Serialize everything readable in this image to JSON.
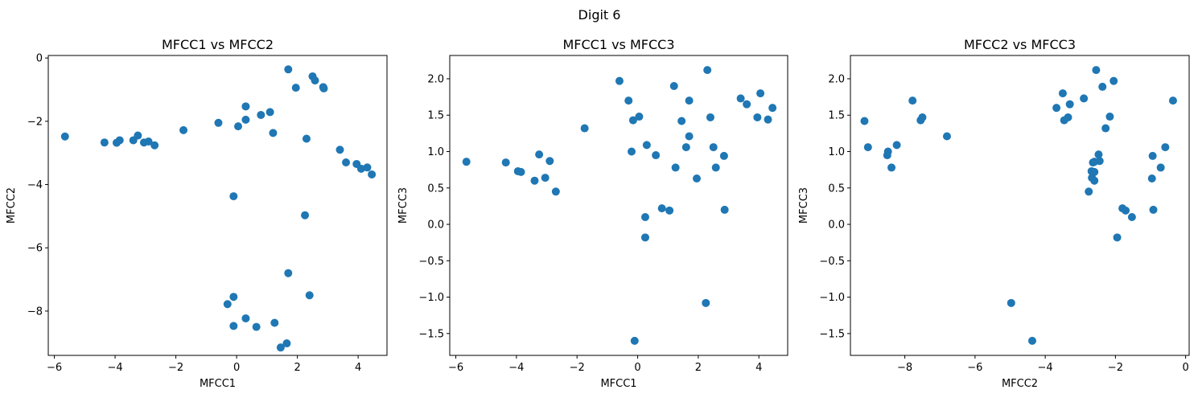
{
  "figure": {
    "suptitle": "Digit 6"
  },
  "colors": {
    "marker": "#1f77b4"
  },
  "chart_data": [
    {
      "type": "scatter",
      "title": "MFCC1 vs MFCC2",
      "xlabel": "MFCC1",
      "ylabel": "MFCC2",
      "xlim": [
        -6.2,
        4.95
      ],
      "ylim": [
        -9.4,
        0.08
      ],
      "xticks": [
        -6,
        -4,
        -2,
        0,
        2,
        4
      ],
      "xtick_labels": [
        "−6",
        "−4",
        "−2",
        "0",
        "2",
        "4"
      ],
      "yticks": [
        -8,
        -6,
        -4,
        -2,
        0
      ],
      "ytick_labels": [
        "−8",
        "−6",
        "−4",
        "−2",
        "0"
      ],
      "points": [
        [
          -5.65,
          -2.48
        ],
        [
          -4.35,
          -2.67
        ],
        [
          -3.95,
          -2.68
        ],
        [
          -3.85,
          -2.6
        ],
        [
          -3.4,
          -2.6
        ],
        [
          -3.25,
          -2.45
        ],
        [
          -3.05,
          -2.67
        ],
        [
          -2.9,
          -2.64
        ],
        [
          -2.7,
          -2.76
        ],
        [
          -1.75,
          -2.28
        ],
        [
          -0.6,
          -2.05
        ],
        [
          0.05,
          -2.16
        ],
        [
          0.3,
          -1.95
        ],
        [
          0.3,
          -1.53
        ],
        [
          0.8,
          -1.8
        ],
        [
          1.1,
          -1.71
        ],
        [
          1.2,
          -2.37
        ],
        [
          1.7,
          -0.36
        ],
        [
          1.95,
          -0.94
        ],
        [
          2.3,
          -2.55
        ],
        [
          2.5,
          -0.58
        ],
        [
          2.58,
          -0.71
        ],
        [
          2.85,
          -0.92
        ],
        [
          2.87,
          -0.96
        ],
        [
          3.4,
          -2.9
        ],
        [
          3.6,
          -3.3
        ],
        [
          3.95,
          -3.35
        ],
        [
          4.1,
          -3.5
        ],
        [
          4.3,
          -3.46
        ],
        [
          4.45,
          -3.68
        ],
        [
          -0.1,
          -4.37
        ],
        [
          2.25,
          -4.97
        ],
        [
          1.7,
          -6.8
        ],
        [
          2.4,
          -7.5
        ],
        [
          -0.3,
          -7.78
        ],
        [
          -0.1,
          -7.55
        ],
        [
          -0.1,
          -8.47
        ],
        [
          0.3,
          -8.23
        ],
        [
          0.65,
          -8.5
        ],
        [
          1.25,
          -8.37
        ],
        [
          1.45,
          -9.15
        ],
        [
          1.65,
          -9.02
        ]
      ]
    },
    {
      "type": "scatter",
      "title": "MFCC1 vs MFCC3",
      "xlabel": "MFCC1",
      "ylabel": "MFCC3",
      "xlim": [
        -6.2,
        4.95
      ],
      "ylim": [
        -1.8,
        2.32
      ],
      "xticks": [
        -6,
        -4,
        -2,
        0,
        2,
        4
      ],
      "xtick_labels": [
        "−6",
        "−4",
        "−2",
        "0",
        "2",
        "4"
      ],
      "yticks": [
        -1.5,
        -1.0,
        -0.5,
        0.0,
        0.5,
        1.0,
        1.5,
        2.0
      ],
      "ytick_labels": [
        "−1.5",
        "−1.0",
        "−0.5",
        "0.0",
        "0.5",
        "1.0",
        "1.5",
        "2.0"
      ],
      "points": [
        [
          -5.65,
          0.86
        ],
        [
          -4.35,
          0.85
        ],
        [
          -3.95,
          0.73
        ],
        [
          -3.85,
          0.72
        ],
        [
          -3.4,
          0.6
        ],
        [
          -3.25,
          0.96
        ],
        [
          -3.05,
          0.64
        ],
        [
          -2.9,
          0.87
        ],
        [
          -2.7,
          0.45
        ],
        [
          -1.75,
          1.32
        ],
        [
          -0.6,
          1.97
        ],
        [
          -0.3,
          1.7
        ],
        [
          -0.2,
          1.0
        ],
        [
          -0.15,
          1.43
        ],
        [
          0.05,
          1.48
        ],
        [
          0.3,
          1.09
        ],
        [
          0.25,
          0.1
        ],
        [
          0.25,
          -0.18
        ],
        [
          0.6,
          0.95
        ],
        [
          0.8,
          0.22
        ],
        [
          1.05,
          0.19
        ],
        [
          1.2,
          1.9
        ],
        [
          1.25,
          0.78
        ],
        [
          1.45,
          1.42
        ],
        [
          1.6,
          1.06
        ],
        [
          1.7,
          1.7
        ],
        [
          1.7,
          1.21
        ],
        [
          1.95,
          0.63
        ],
        [
          2.3,
          2.12
        ],
        [
          2.4,
          1.47
        ],
        [
          2.5,
          1.06
        ],
        [
          2.58,
          0.78
        ],
        [
          2.85,
          0.94
        ],
        [
          2.87,
          0.2
        ],
        [
          3.4,
          1.73
        ],
        [
          3.6,
          1.65
        ],
        [
          3.95,
          1.47
        ],
        [
          4.05,
          1.8
        ],
        [
          4.3,
          1.44
        ],
        [
          4.45,
          1.6
        ],
        [
          2.25,
          -1.08
        ],
        [
          -0.1,
          -1.6
        ]
      ]
    },
    {
      "type": "scatter",
      "title": "MFCC2 vs MFCC3",
      "xlabel": "MFCC2",
      "ylabel": "MFCC3",
      "xlim": [
        -9.55,
        0.1
      ],
      "ylim": [
        -1.8,
        2.32
      ],
      "xticks": [
        -8,
        -6,
        -4,
        -2,
        0
      ],
      "xtick_labels": [
        "−8",
        "−6",
        "−4",
        "−2",
        "0"
      ],
      "yticks": [
        -1.5,
        -1.0,
        -0.5,
        0.0,
        0.5,
        1.0,
        1.5,
        2.0
      ],
      "ytick_labels": [
        "−1.5",
        "−1.0",
        "−0.5",
        "0.0",
        "0.5",
        "1.0",
        "1.5",
        "2.0"
      ],
      "points": [
        [
          -9.15,
          1.42
        ],
        [
          -9.05,
          1.06
        ],
        [
          -8.5,
          0.95
        ],
        [
          -8.48,
          1.0
        ],
        [
          -8.38,
          0.78
        ],
        [
          -8.23,
          1.09
        ],
        [
          -7.78,
          1.7
        ],
        [
          -7.55,
          1.43
        ],
        [
          -7.5,
          1.47
        ],
        [
          -6.8,
          1.21
        ],
        [
          -4.97,
          -1.08
        ],
        [
          -4.37,
          -1.6
        ],
        [
          -3.68,
          1.6
        ],
        [
          -3.5,
          1.8
        ],
        [
          -3.46,
          1.43
        ],
        [
          -3.35,
          1.47
        ],
        [
          -3.3,
          1.65
        ],
        [
          -2.9,
          1.73
        ],
        [
          -2.76,
          0.45
        ],
        [
          -2.68,
          0.73
        ],
        [
          -2.67,
          0.64
        ],
        [
          -2.64,
          0.85
        ],
        [
          -2.6,
          0.86
        ],
        [
          -2.6,
          0.6
        ],
        [
          -2.55,
          2.12
        ],
        [
          -2.6,
          0.72
        ],
        [
          -2.48,
          0.96
        ],
        [
          -2.45,
          0.87
        ],
        [
          -2.37,
          1.89
        ],
        [
          -2.28,
          1.32
        ],
        [
          -2.16,
          1.48
        ],
        [
          -2.05,
          1.97
        ],
        [
          -1.95,
          -0.18
        ],
        [
          -1.8,
          0.22
        ],
        [
          -1.71,
          0.19
        ],
        [
          -1.53,
          0.1
        ],
        [
          -0.96,
          0.63
        ],
        [
          -0.94,
          0.94
        ],
        [
          -0.92,
          0.2
        ],
        [
          -0.71,
          0.78
        ],
        [
          -0.58,
          1.06
        ],
        [
          -0.36,
          1.7
        ]
      ]
    }
  ]
}
